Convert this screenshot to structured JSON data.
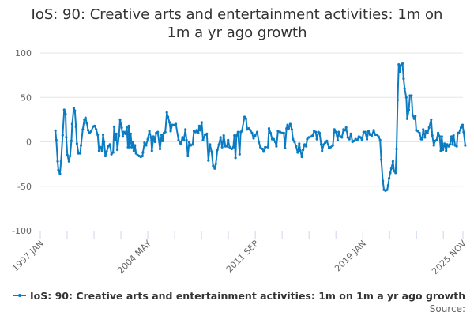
{
  "chart_data": {
    "type": "line",
    "title_lines": [
      "IoS: 90: Creative arts and entertainment activities: 1m on",
      "1m a yr ago growth"
    ],
    "xlabel": "",
    "ylabel": "",
    "ylim": [
      -100,
      100
    ],
    "y_ticks": [
      "100",
      "50",
      "0",
      "-50",
      "-100"
    ],
    "y_tick_values": [
      100,
      50,
      0,
      -50,
      -100
    ],
    "x_unit": "months since 1997 JAN",
    "x_tick_labels": [
      {
        "label": "1997 JAN",
        "month": 0
      },
      {
        "label": "2004 MAY",
        "month": 88
      },
      {
        "label": "2011 SEP",
        "month": 176
      },
      {
        "label": "2019 JAN",
        "month": 264
      },
      {
        "label": "2025 NOV",
        "month": 346
      }
    ],
    "grid": true,
    "legend_position": "bottom",
    "color": "#0b7cc2",
    "series": [
      {
        "name": "IoS: 90: Creative arts and entertainment activities: 1m on 1m a yr ago growth",
        "points": [
          [
            12.4,
            12.6
          ],
          [
            13.1,
            2
          ],
          [
            14.2,
            -22
          ],
          [
            14.8,
            -32
          ],
          [
            16.1,
            -36
          ],
          [
            17,
            -22
          ],
          [
            18.3,
            7.5
          ],
          [
            19.6,
            36
          ],
          [
            20.7,
            31
          ],
          [
            21.3,
            5
          ],
          [
            22.2,
            -15
          ],
          [
            23.5,
            -22
          ],
          [
            24.4,
            -16
          ],
          [
            25.5,
            1
          ],
          [
            26.1,
            20
          ],
          [
            27.4,
            38
          ],
          [
            28.3,
            35
          ],
          [
            29.2,
            17
          ],
          [
            30,
            -2
          ],
          [
            31.3,
            -13
          ],
          [
            32.7,
            -13
          ],
          [
            33.3,
            -4
          ],
          [
            34.8,
            14
          ],
          [
            36.1,
            25
          ],
          [
            37,
            27
          ],
          [
            38.1,
            21
          ],
          [
            39.2,
            13
          ],
          [
            40.5,
            10
          ],
          [
            41.8,
            12
          ],
          [
            43.1,
            17
          ],
          [
            44.4,
            18
          ],
          [
            45.7,
            14
          ],
          [
            47,
            8
          ],
          [
            48.1,
            -10
          ],
          [
            49.2,
            -6
          ],
          [
            50.5,
            -10
          ],
          [
            51.4,
            8
          ],
          [
            52.2,
            0
          ],
          [
            53.3,
            -16
          ],
          [
            54.4,
            -11
          ],
          [
            55.7,
            -5
          ],
          [
            57,
            -3
          ],
          [
            58.3,
            -14
          ],
          [
            59.6,
            -12
          ],
          [
            60.5,
            17
          ],
          [
            61.4,
            2
          ],
          [
            62.3,
            9
          ],
          [
            63.1,
            -9
          ],
          [
            64.4,
            7
          ],
          [
            65.3,
            25
          ],
          [
            66.6,
            16
          ],
          [
            67.5,
            6
          ],
          [
            68.4,
            11
          ],
          [
            69.7,
            9
          ],
          [
            70.8,
            16
          ],
          [
            71.8,
            -6
          ],
          [
            72.5,
            18
          ],
          [
            73.1,
            -6
          ],
          [
            74,
            9
          ],
          [
            74.9,
            -6
          ],
          [
            75.8,
            0
          ],
          [
            76.6,
            -10
          ],
          [
            77.5,
            -4
          ],
          [
            78.4,
            -13
          ],
          [
            79.7,
            -15
          ],
          [
            81,
            -16
          ],
          [
            82.3,
            -17
          ],
          [
            83.6,
            -16
          ],
          [
            84,
            -12
          ],
          [
            85.3,
            -1
          ],
          [
            86.6,
            -4
          ],
          [
            88,
            3
          ],
          [
            89.3,
            12
          ],
          [
            90.6,
            5
          ],
          [
            91.4,
            -10
          ],
          [
            92.7,
            6
          ],
          [
            94,
            0
          ],
          [
            94.9,
            10
          ],
          [
            96.2,
            11
          ],
          [
            98,
            -8
          ],
          [
            99.3,
            8
          ],
          [
            100.1,
            1
          ],
          [
            101.2,
            10
          ],
          [
            102.3,
            11
          ],
          [
            103.6,
            33
          ],
          [
            104.5,
            28
          ],
          [
            105.8,
            22
          ],
          [
            106.7,
            12
          ],
          [
            108,
            19
          ],
          [
            109.7,
            19
          ],
          [
            111,
            20
          ],
          [
            113.2,
            2
          ],
          [
            114.9,
            -2
          ],
          [
            116.4,
            5
          ],
          [
            117.5,
            2
          ],
          [
            118.8,
            14
          ],
          [
            119.7,
            2
          ],
          [
            120.8,
            -16
          ],
          [
            121.9,
            0
          ],
          [
            123.2,
            -4
          ],
          [
            124.7,
            -3
          ],
          [
            125.8,
            12
          ],
          [
            127.1,
            11
          ],
          [
            128,
            13
          ],
          [
            129.3,
            10
          ],
          [
            130.2,
            18
          ],
          [
            131,
            13
          ],
          [
            132.1,
            22
          ],
          [
            133.2,
            2
          ],
          [
            134.9,
            8
          ],
          [
            136.3,
            9
          ],
          [
            137.6,
            -21
          ],
          [
            138.9,
            -3
          ],
          [
            140.2,
            -11
          ],
          [
            141.5,
            -27
          ],
          [
            142.8,
            -30
          ],
          [
            143.7,
            -25
          ],
          [
            145,
            -9
          ],
          [
            146.3,
            -3
          ],
          [
            147.6,
            5
          ],
          [
            148.9,
            -6
          ],
          [
            150.2,
            7
          ],
          [
            151.5,
            -5
          ],
          [
            152.8,
            -5
          ],
          [
            153.7,
            2
          ],
          [
            155,
            -6
          ],
          [
            156.7,
            -8
          ],
          [
            158,
            -6
          ],
          [
            158.9,
            7
          ],
          [
            159.8,
            -18
          ],
          [
            160.6,
            7
          ],
          [
            161.9,
            11
          ],
          [
            163.2,
            -14
          ],
          [
            164.1,
            11
          ],
          [
            165,
            12
          ],
          [
            167.2,
            28
          ],
          [
            168.5,
            26
          ],
          [
            169.3,
            14
          ],
          [
            170.6,
            15
          ],
          [
            172,
            13
          ],
          [
            173.3,
            10
          ],
          [
            174.6,
            4
          ],
          [
            175.9,
            7
          ],
          [
            177.6,
            11
          ],
          [
            178.9,
            0
          ],
          [
            180.2,
            -6
          ],
          [
            182,
            -8
          ],
          [
            182.8,
            -11
          ],
          [
            184.1,
            -6
          ],
          [
            186.3,
            -6
          ],
          [
            187.2,
            15
          ],
          [
            188.5,
            10
          ],
          [
            189.8,
            3
          ],
          [
            191.1,
            3
          ],
          [
            192.4,
            0
          ],
          [
            193.3,
            -5
          ],
          [
            194.6,
            12
          ],
          [
            196.3,
            11
          ],
          [
            198.1,
            10
          ],
          [
            199.4,
            10
          ],
          [
            200.3,
            -7
          ],
          [
            201.6,
            15
          ],
          [
            202.4,
            19
          ],
          [
            203.3,
            15
          ],
          [
            204.6,
            20
          ],
          [
            205.9,
            14
          ],
          [
            206.8,
            3
          ],
          [
            208.1,
            0
          ],
          [
            209.4,
            -5
          ],
          [
            210.7,
            -12
          ],
          [
            212,
            -2
          ],
          [
            212.9,
            -10
          ],
          [
            214.2,
            -17
          ],
          [
            215.1,
            -9
          ],
          [
            216.4,
            -3
          ],
          [
            217.7,
            -5
          ],
          [
            218.5,
            3
          ],
          [
            219.9,
            5
          ],
          [
            221.6,
            6
          ],
          [
            222.9,
            7
          ],
          [
            224.2,
            12
          ],
          [
            225.5,
            11
          ],
          [
            226.4,
            3
          ],
          [
            227.7,
            11
          ],
          [
            228.6,
            10
          ],
          [
            229.9,
            -3
          ],
          [
            230.7,
            -10
          ],
          [
            232,
            -3
          ],
          [
            233.3,
            -1
          ],
          [
            234.7,
            1
          ],
          [
            236.4,
            -7
          ],
          [
            237.7,
            -6
          ],
          [
            239.5,
            -4
          ],
          [
            240.8,
            14
          ],
          [
            242.1,
            11
          ],
          [
            243.4,
            2
          ],
          [
            244.3,
            11
          ],
          [
            245.6,
            6
          ],
          [
            246.9,
            5
          ],
          [
            248.2,
            14
          ],
          [
            249.5,
            13
          ],
          [
            250.4,
            16
          ],
          [
            251.7,
            5
          ],
          [
            253,
            3
          ],
          [
            254.3,
            9
          ],
          [
            255.6,
            0
          ],
          [
            256.9,
            1
          ],
          [
            258.2,
            3
          ],
          [
            259.5,
            2
          ],
          [
            260.8,
            6
          ],
          [
            262.1,
            5
          ],
          [
            263.4,
            2
          ],
          [
            264.7,
            11
          ],
          [
            266,
            11
          ],
          [
            267.4,
            3
          ],
          [
            268.7,
            12
          ],
          [
            270,
            8
          ],
          [
            271.3,
            7
          ],
          [
            273,
            13
          ],
          [
            274.3,
            8
          ],
          [
            275.6,
            8
          ],
          [
            276.9,
            6
          ],
          [
            278.2,
            2
          ],
          [
            279.1,
            -20
          ],
          [
            280.4,
            -44
          ],
          [
            281.3,
            -54
          ],
          [
            282.6,
            -55
          ],
          [
            283.9,
            -54
          ],
          [
            284.8,
            -49
          ],
          [
            285.6,
            -41
          ],
          [
            286.5,
            -35
          ],
          [
            287.4,
            -30
          ],
          [
            288.7,
            -22
          ],
          [
            289.6,
            -33
          ],
          [
            290.9,
            -35
          ],
          [
            291.7,
            -8
          ],
          [
            292.6,
            47
          ],
          [
            293.5,
            87
          ],
          [
            294.3,
            79
          ],
          [
            295.2,
            86
          ],
          [
            296.5,
            88
          ],
          [
            297.4,
            71
          ],
          [
            298.3,
            60
          ],
          [
            299.6,
            50
          ],
          [
            300.4,
            26
          ],
          [
            301.7,
            36
          ],
          [
            302.6,
            52
          ],
          [
            303.9,
            52
          ],
          [
            304.8,
            30
          ],
          [
            306.1,
            26
          ],
          [
            307,
            29
          ],
          [
            307.8,
            13
          ],
          [
            309.1,
            12
          ],
          [
            310.5,
            10
          ],
          [
            311.8,
            3
          ],
          [
            312.6,
            3
          ],
          [
            313.5,
            14
          ],
          [
            314.8,
            5
          ],
          [
            315.7,
            12
          ],
          [
            317,
            10
          ],
          [
            318.3,
            16
          ],
          [
            320,
            25
          ],
          [
            320.9,
            7
          ],
          [
            322.2,
            -4
          ],
          [
            323.1,
            1
          ],
          [
            324.4,
            2
          ],
          [
            325.7,
            10
          ],
          [
            327,
            6
          ],
          [
            327.9,
            -10
          ],
          [
            328.7,
            6
          ],
          [
            329.6,
            -9
          ],
          [
            330.9,
            -2
          ],
          [
            332.2,
            -10
          ],
          [
            333.1,
            -3
          ],
          [
            334.4,
            -5
          ],
          [
            335.3,
            -3
          ],
          [
            336.6,
            6
          ],
          [
            337.5,
            -3
          ],
          [
            338.3,
            7
          ],
          [
            339.6,
            -4
          ],
          [
            340.9,
            -5
          ],
          [
            341.8,
            10
          ],
          [
            342.7,
            10
          ],
          [
            344.4,
            16
          ],
          [
            345.7,
            19
          ],
          [
            346.6,
            11
          ],
          [
            347.9,
            -4
          ]
        ]
      }
    ],
    "source_label": "Source:"
  }
}
